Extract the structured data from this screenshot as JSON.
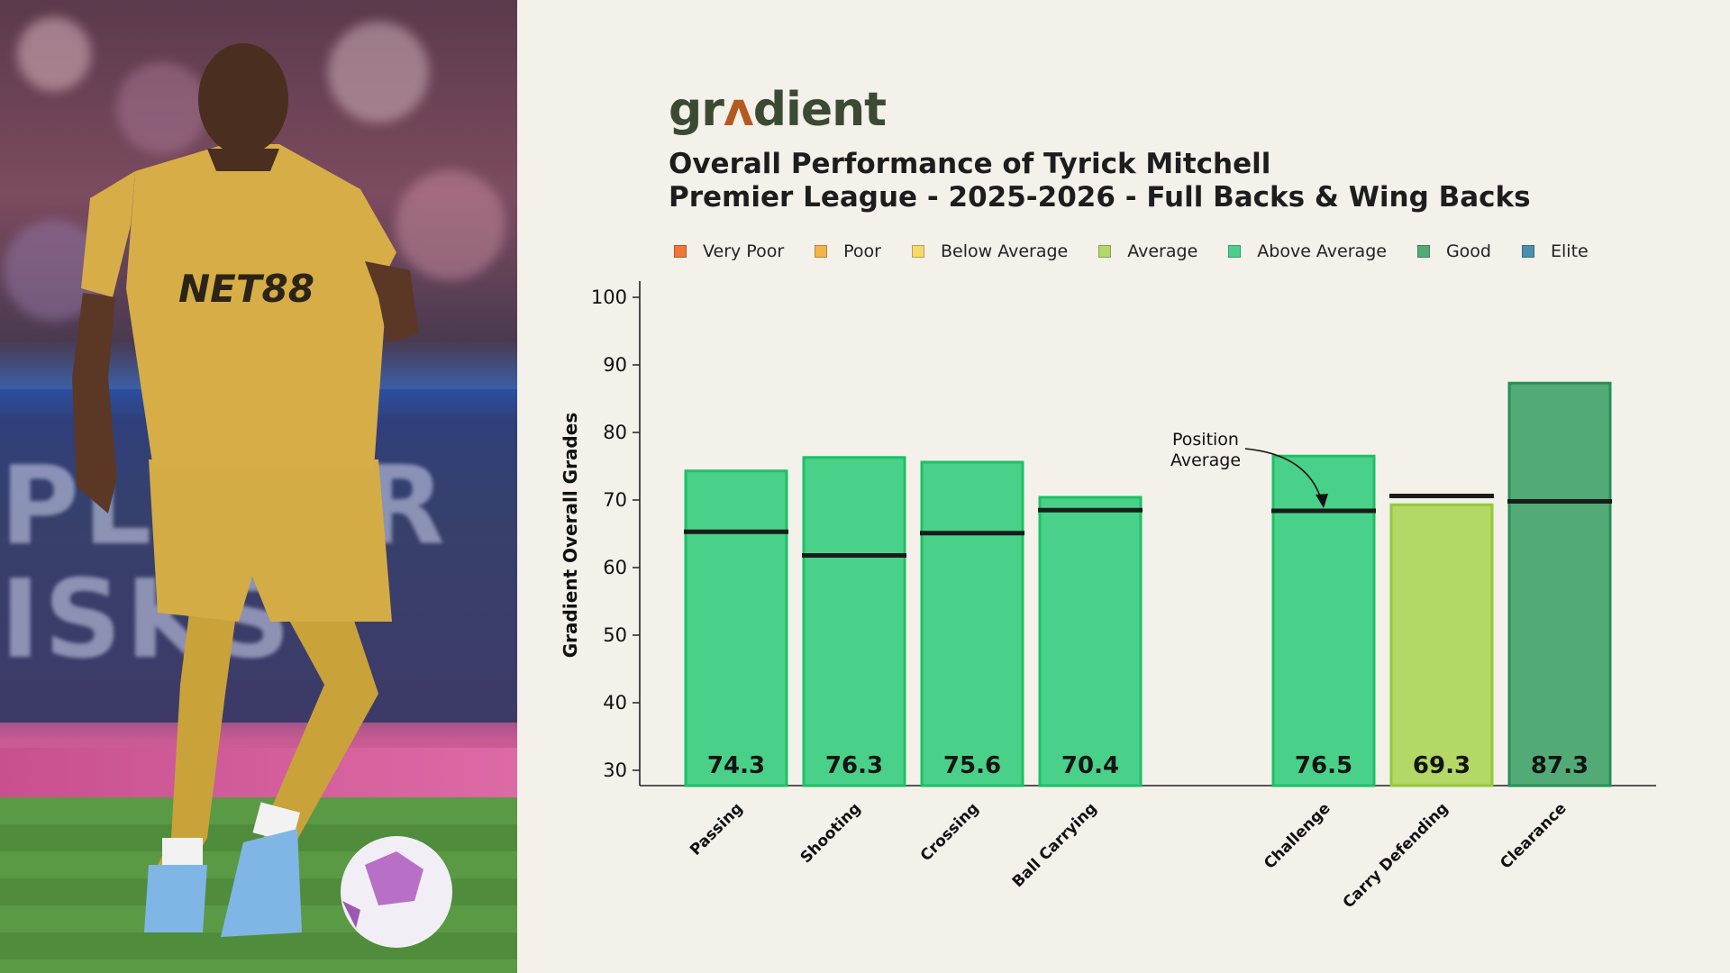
{
  "brand": {
    "logo_prefix": "gr",
    "logo_accent": "ʌ",
    "logo_suffix": "dient",
    "logo_color": "#3b4a32",
    "accent_color": "#b35a22"
  },
  "photo": {
    "shirt_sponsor": "NET88",
    "board_text_line1": "PLU ER",
    "board_text_line2": "ISKS"
  },
  "title": {
    "line1": "Overall Performance of Tyrick Mitchell",
    "line2": "Premier League - 2025-2026 - Full Backs & Wing Backs"
  },
  "legend": [
    {
      "label": "Very Poor",
      "color": "#f0773a"
    },
    {
      "label": "Poor",
      "color": "#f2b44a"
    },
    {
      "label": "Below Average",
      "color": "#f7d86a"
    },
    {
      "label": "Average",
      "color": "#b3d865"
    },
    {
      "label": "Above Average",
      "color": "#49d18a"
    },
    {
      "label": "Good",
      "color": "#52ab77"
    },
    {
      "label": "Elite",
      "color": "#4c8ead"
    }
  ],
  "annotation": {
    "line1": "Position",
    "line2": "Average"
  },
  "chart_data": {
    "type": "bar",
    "ylabel": "Gradient Overall Grades",
    "xlabel": "",
    "ylim": [
      30,
      100
    ],
    "yticks": [
      30,
      40,
      50,
      60,
      70,
      80,
      90,
      100
    ],
    "grid": false,
    "categories": [
      "Passing",
      "Shooting",
      "Crossing",
      "Ball Carrying",
      "Challenge",
      "Carry Defending",
      "Clearance"
    ],
    "groups": [
      [
        0,
        1,
        2,
        3
      ],
      [
        4,
        5,
        6
      ]
    ],
    "values": [
      74.3,
      76.3,
      75.6,
      70.4,
      76.5,
      69.3,
      87.3
    ],
    "value_labels": [
      "74.3",
      "76.3",
      "75.6",
      "70.4",
      "76.5",
      "69.3",
      "87.3"
    ],
    "position_average": [
      65.3,
      61.8,
      65.1,
      68.5,
      68.4,
      70.6,
      69.8
    ],
    "bar_colors": [
      "#49d18a",
      "#49d18a",
      "#49d18a",
      "#49d18a",
      "#49d18a",
      "#b3d865",
      "#52ab77"
    ],
    "bar_edge_colors": [
      "#1fbf67",
      "#1fbf67",
      "#1fbf67",
      "#1fbf67",
      "#1fbf67",
      "#93c83c",
      "#269055"
    ]
  }
}
